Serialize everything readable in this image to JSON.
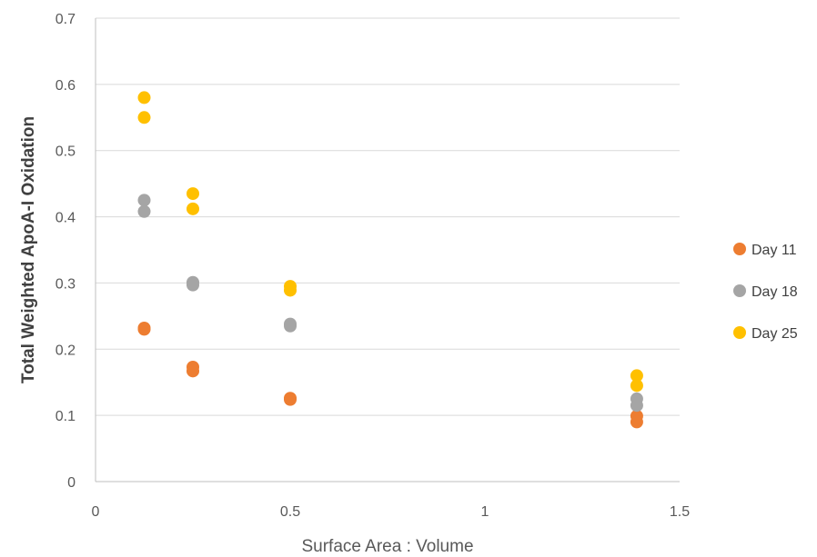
{
  "chart_data": {
    "type": "scatter",
    "title": "",
    "xlabel": "Surface Area : Volume",
    "ylabel": "Total Weighted ApoA-I Oxidation",
    "xlim": [
      0,
      1.5
    ],
    "ylim": [
      0,
      0.7
    ],
    "x_ticks": [
      "0",
      "0.5",
      "1",
      "1.5"
    ],
    "y_ticks": [
      "0",
      "0.1",
      "0.2",
      "0.3",
      "0.4",
      "0.5",
      "0.6",
      "0.7"
    ],
    "x_tick_values": [
      0,
      0.5,
      1,
      1.5
    ],
    "y_tick_values": [
      0,
      0.1,
      0.2,
      0.3,
      0.4,
      0.5,
      0.6,
      0.7
    ],
    "grid": "horizontal",
    "legend_position": "right",
    "series": [
      {
        "name": "Day 11",
        "color": "#ED7D31",
        "points": [
          [
            0.125,
            0.232
          ],
          [
            0.125,
            0.23
          ],
          [
            0.25,
            0.173
          ],
          [
            0.25,
            0.167
          ],
          [
            0.5,
            0.126
          ],
          [
            0.5,
            0.124
          ],
          [
            1.39,
            0.099
          ],
          [
            1.39,
            0.09
          ]
        ]
      },
      {
        "name": "Day 18",
        "color": "#A5A5A5",
        "points": [
          [
            0.125,
            0.425
          ],
          [
            0.125,
            0.408
          ],
          [
            0.25,
            0.301
          ],
          [
            0.25,
            0.297
          ],
          [
            0.5,
            0.238
          ],
          [
            0.5,
            0.235
          ],
          [
            1.39,
            0.125
          ],
          [
            1.39,
            0.115
          ]
        ]
      },
      {
        "name": "Day 25",
        "color": "#FFC000",
        "points": [
          [
            0.125,
            0.58
          ],
          [
            0.125,
            0.55
          ],
          [
            0.25,
            0.435
          ],
          [
            0.25,
            0.412
          ],
          [
            0.5,
            0.295
          ],
          [
            0.5,
            0.289
          ],
          [
            1.39,
            0.16
          ],
          [
            1.39,
            0.145
          ]
        ]
      }
    ]
  }
}
